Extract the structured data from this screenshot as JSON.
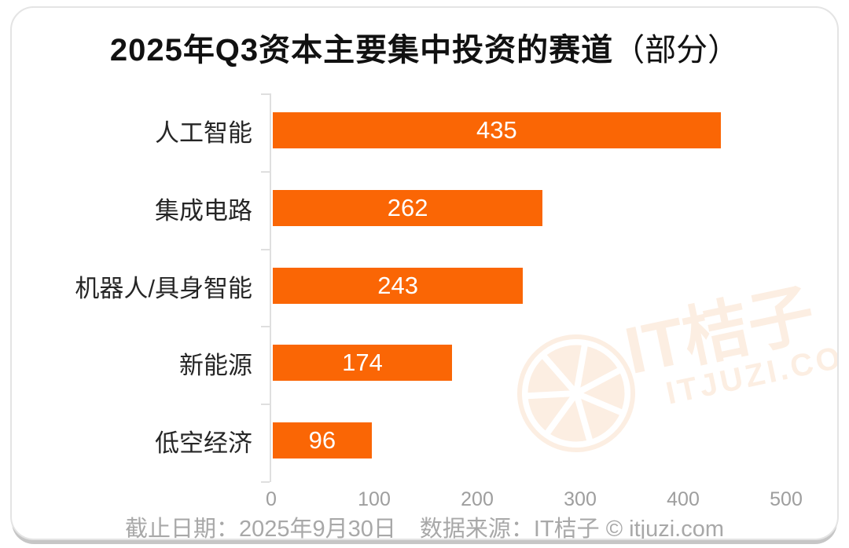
{
  "page": {
    "background": "#FFFFFF",
    "card_border_color": "#E4E4E4",
    "card_shadow_color": "#C6C6C6"
  },
  "title": {
    "main": "2025年Q3资本主要集中投资的赛道",
    "suffix": "（部分）",
    "color": "#111111"
  },
  "chart_data": {
    "type": "bar",
    "orientation": "horizontal",
    "title": "2025年Q3资本主要集中投资的赛道（部分）",
    "categories": [
      "人工智能",
      "集成电路",
      "机器人/具身智能",
      "新能源",
      "低空经济"
    ],
    "values": [
      435,
      262,
      243,
      174,
      96
    ],
    "xlabel": "",
    "ylabel": "",
    "xlim": [
      0,
      500
    ],
    "x_ticks": [
      "0",
      "100",
      "200",
      "300",
      "400",
      "500"
    ],
    "grid": false,
    "legend": "none",
    "value_labels": "inside-center",
    "bar_color": "#FA6605",
    "value_label_color": "#FFFFFF",
    "axis_line_color": "#DFDFDF",
    "tick_label_color": "#9E9E9E",
    "category_label_color": "#262626"
  },
  "footer": {
    "deadline": "截止日期：2025年9月30日",
    "source": "数据来源：IT桔子 © itjuzi.com",
    "color": "#A8A8A8"
  },
  "watermark": {
    "brand": "IT桔子",
    "domain": "ITJUZI.COM",
    "color": "#FCEEE2"
  }
}
